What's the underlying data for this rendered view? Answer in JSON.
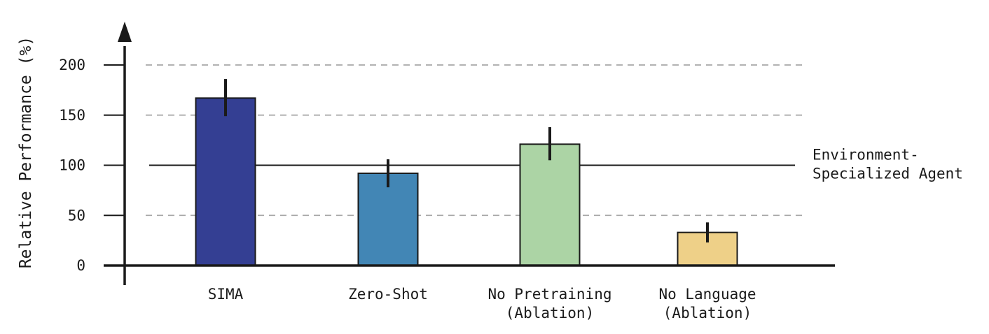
{
  "chart_data": {
    "type": "bar",
    "title": "",
    "xlabel": "",
    "ylabel": "Relative Performance (%)",
    "ylim": [
      0,
      200
    ],
    "yticks": [
      "0",
      "50",
      "100",
      "150",
      "200"
    ],
    "grid": "dashed horizontal at 50, 150, 200",
    "categories": [
      [
        "SIMA"
      ],
      [
        "Zero-Shot"
      ],
      [
        "No Pretraining",
        "(Ablation)"
      ],
      [
        "No Language",
        "(Ablation)"
      ]
    ],
    "values": [
      167,
      92,
      121,
      33
    ],
    "error_low": [
      149,
      78,
      105,
      23
    ],
    "error_high": [
      186,
      106,
      138,
      43
    ],
    "colors": [
      "#343f93",
      "#4286b5",
      "#acd4a5",
      "#eed088"
    ],
    "reference_line": {
      "value": 100,
      "label": [
        "Environment-",
        "Specialized Agent"
      ]
    }
  }
}
